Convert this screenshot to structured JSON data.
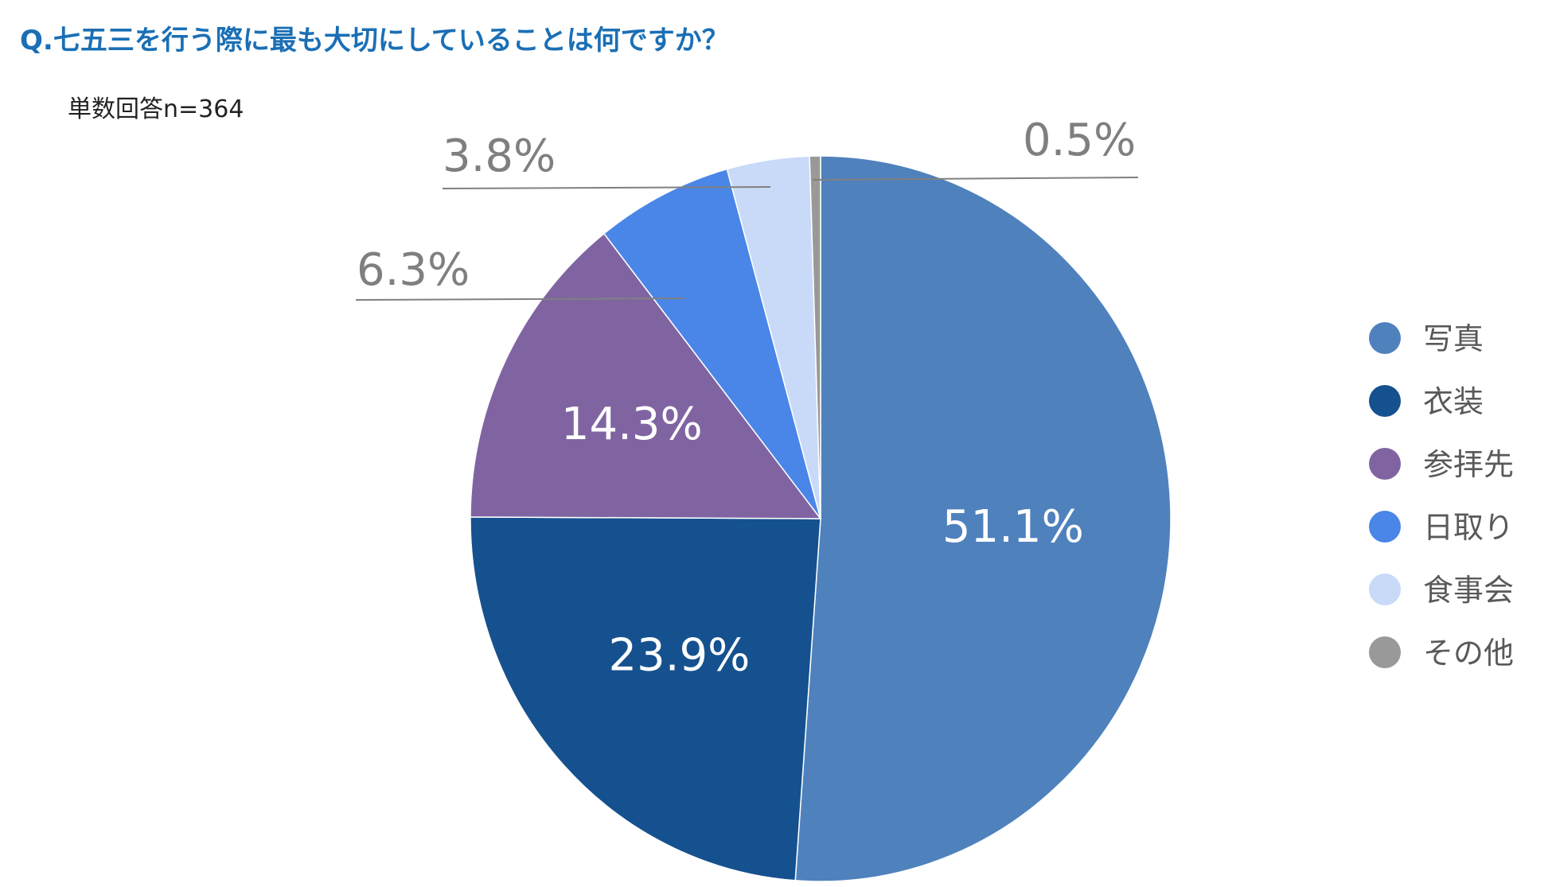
{
  "title": "Q.七五三を行う際に最も大切にしていることは何ですか？",
  "subtitle": "単数回答n=364",
  "chart_data": {
    "type": "pie",
    "title": "Q.七五三を行う際に最も大切にしていることは何ですか？",
    "subtitle": "単数回答n=364",
    "legend_position": "right",
    "slices": [
      {
        "label": "写真",
        "value": 51.1,
        "display": "51.1%",
        "color": "#4f81bd",
        "label_position": "inside"
      },
      {
        "label": "衣装",
        "value": 23.9,
        "display": "23.9%",
        "color": "#15518f",
        "label_position": "inside"
      },
      {
        "label": "参拝先",
        "value": 14.3,
        "display": "14.3%",
        "color": "#8064a2",
        "label_position": "inside"
      },
      {
        "label": "日取り",
        "value": 6.3,
        "display": "6.3%",
        "color": "#4a86e8",
        "label_position": "outside"
      },
      {
        "label": "食事会",
        "value": 3.8,
        "display": "3.8%",
        "color": "#c9daf8",
        "label_position": "outside"
      },
      {
        "label": "その他",
        "value": 0.5,
        "display": "0.5%",
        "color": "#999999",
        "label_position": "outside"
      }
    ]
  }
}
